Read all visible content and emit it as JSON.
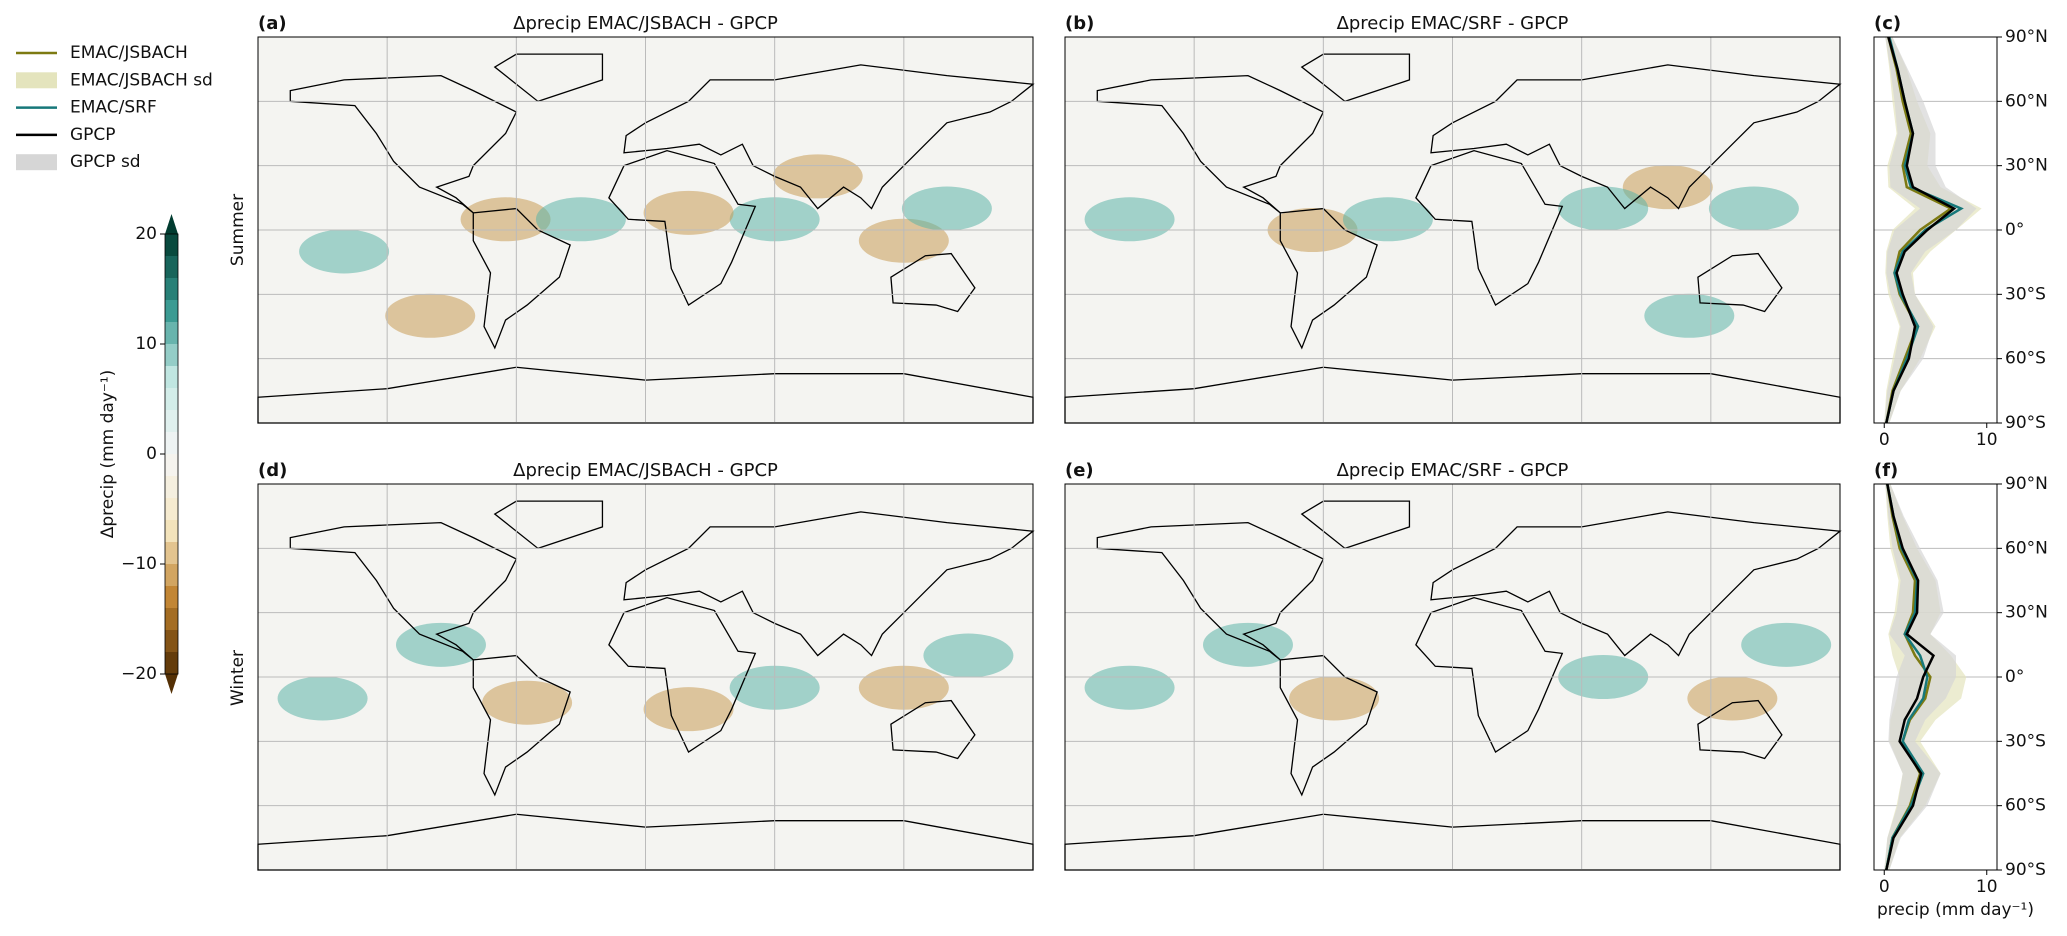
{
  "colorbar": {
    "label": "Δprecip (mm day⁻¹)",
    "lim": [
      -20,
      20
    ],
    "ticks": [
      {
        "value": -20,
        "label": "−20"
      },
      {
        "value": -10,
        "label": "−10"
      },
      0,
      10,
      20
    ]
  },
  "row_labels": [
    "Summer",
    "Winter"
  ],
  "maps": [
    {
      "label": "(a)",
      "title": "Δprecip EMAC/JSBACH - GPCP"
    },
    {
      "label": "(b)",
      "title": "Δprecip EMAC/SRF - GPCP"
    },
    {
      "label": "(d)",
      "title": "Δprecip EMAC/JSBACH - GPCP"
    },
    {
      "label": "(e)",
      "title": "Δprecip EMAC/SRF - GPCP"
    }
  ],
  "chart_data": [
    {
      "type": "line",
      "label": "(c)",
      "y": [
        90,
        75,
        60,
        45,
        30,
        20,
        10,
        0,
        -10,
        -20,
        -30,
        -45,
        -60,
        -75,
        -90
      ],
      "ylim": [
        -90,
        90
      ],
      "yticks": [
        {
          "value": 90,
          "label": "90°N"
        },
        {
          "value": 60,
          "label": "60°N"
        },
        {
          "value": 30,
          "label": "30°N"
        },
        {
          "value": 0,
          "label": "0°"
        },
        {
          "value": -30,
          "label": "30°S"
        },
        {
          "value": -60,
          "label": "60°S"
        },
        {
          "value": -90,
          "label": "90°S"
        }
      ],
      "xlim": [
        -1,
        11
      ],
      "xticks": [
        0,
        10
      ],
      "series": [
        {
          "name": "EMAC/JSBACH",
          "color": "#7d7a12",
          "values": [
            0.4,
            1.2,
            1.8,
            2.6,
            1.8,
            2.2,
            6.5,
            3.5,
            1.5,
            1.0,
            1.5,
            3.2,
            2.0,
            0.8,
            0.2
          ]
        },
        {
          "name": "EMAC/JSBACH sd",
          "color": "#e4e4bd",
          "lower": [
            0.1,
            0.5,
            0.8,
            1.2,
            0.3,
            0.4,
            3.0,
            0.8,
            0.2,
            0.1,
            0.4,
            1.5,
            0.8,
            0.2,
            0.0
          ],
          "upper": [
            0.8,
            2.2,
            3.2,
            4.5,
            4.2,
            5.5,
            9.5,
            7.0,
            4.5,
            2.8,
            3.0,
            5.0,
            3.5,
            1.6,
            0.5
          ]
        },
        {
          "name": "EMAC/SRF",
          "color": "#17787a",
          "values": [
            0.5,
            1.3,
            2.0,
            2.8,
            2.0,
            2.6,
            7.5,
            4.0,
            1.8,
            1.0,
            1.6,
            3.3,
            2.2,
            0.9,
            0.2
          ]
        },
        {
          "name": "GPCP",
          "color": "#000000",
          "values": [
            0.4,
            1.3,
            2.0,
            2.8,
            2.2,
            2.8,
            6.8,
            4.2,
            2.0,
            1.2,
            1.8,
            3.0,
            2.4,
            0.9,
            0.2
          ]
        },
        {
          "name": "GPCP sd",
          "color": "#d6d6d6",
          "lower": [
            0.1,
            0.6,
            1.0,
            1.3,
            0.5,
            0.6,
            3.5,
            1.0,
            0.3,
            0.2,
            0.6,
            1.6,
            1.0,
            0.3,
            0.0
          ],
          "upper": [
            0.8,
            2.3,
            3.8,
            5.0,
            5.0,
            6.0,
            9.0,
            7.0,
            4.0,
            2.6,
            3.0,
            4.8,
            3.8,
            1.6,
            0.5
          ]
        }
      ]
    },
    {
      "type": "line",
      "label": "(f)",
      "xlabel": "precip (mm day⁻¹)",
      "y": [
        90,
        75,
        60,
        45,
        30,
        20,
        10,
        0,
        -10,
        -20,
        -30,
        -45,
        -60,
        -75,
        -90
      ],
      "ylim": [
        -90,
        90
      ],
      "yticks": [
        {
          "value": 90,
          "label": "90°N"
        },
        {
          "value": 60,
          "label": "60°N"
        },
        {
          "value": 30,
          "label": "30°N"
        },
        {
          "value": 0,
          "label": "0°"
        },
        {
          "value": -30,
          "label": "30°S"
        },
        {
          "value": -60,
          "label": "60°S"
        },
        {
          "value": -90,
          "label": "90°S"
        }
      ],
      "xlim": [
        -1,
        11
      ],
      "xticks": [
        0,
        10
      ],
      "series": [
        {
          "color": "#7d7a12",
          "values": [
            0.3,
            0.8,
            1.5,
            3.0,
            2.8,
            2.0,
            3.0,
            4.5,
            4.0,
            2.5,
            1.8,
            3.5,
            2.5,
            0.8,
            0.2
          ]
        },
        {
          "color": "#e4e4bd",
          "lower": [
            0.1,
            0.3,
            0.6,
            1.4,
            1.0,
            0.4,
            0.8,
            1.5,
            1.2,
            0.6,
            0.5,
            1.8,
            1.2,
            0.3,
            0.0
          ],
          "upper": [
            0.6,
            1.8,
            3.2,
            5.0,
            5.5,
            4.5,
            6.5,
            8.0,
            7.5,
            5.0,
            3.5,
            5.5,
            4.0,
            1.5,
            0.5
          ]
        },
        {
          "color": "#17787a",
          "values": [
            0.3,
            0.9,
            1.7,
            3.2,
            3.0,
            2.0,
            3.5,
            4.2,
            3.8,
            2.4,
            1.8,
            3.8,
            2.6,
            0.8,
            0.2
          ]
        },
        {
          "color": "#000000",
          "values": [
            0.3,
            0.9,
            1.8,
            3.3,
            3.2,
            2.2,
            4.8,
            3.8,
            3.2,
            2.0,
            1.5,
            3.6,
            2.8,
            0.9,
            0.2
          ]
        },
        {
          "color": "#d6d6d6",
          "lower": [
            0.1,
            0.4,
            0.8,
            1.6,
            1.2,
            0.5,
            2.0,
            1.2,
            0.8,
            0.5,
            0.4,
            1.8,
            1.3,
            0.3,
            0.0
          ],
          "upper": [
            0.6,
            1.9,
            3.5,
            5.2,
            5.8,
            4.5,
            7.0,
            7.0,
            6.0,
            4.0,
            3.0,
            5.5,
            4.2,
            1.6,
            0.5
          ]
        }
      ]
    }
  ]
}
